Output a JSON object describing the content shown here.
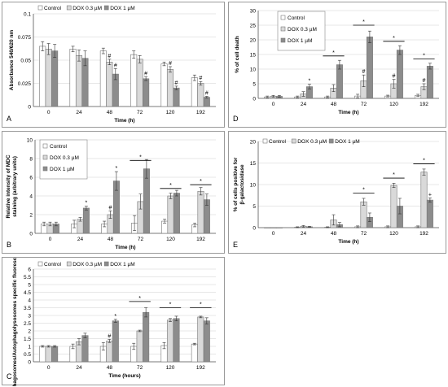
{
  "panels": [
    {
      "letter": "A",
      "chart_data": {
        "type": "bar",
        "ylabel": "Absorbance 540/620 nm",
        "xlabel": "Time (h)",
        "categories": [
          "0",
          "24",
          "48",
          "72",
          "120",
          "192"
        ],
        "ylim": [
          0,
          0.1
        ],
        "yticks": [
          "0",
          "0.025",
          "0.05",
          "0.075",
          "0.1"
        ],
        "legend_position": "top",
        "legend_layout": "row",
        "grid": true,
        "series": [
          {
            "name": "Control",
            "color": "#ffffff",
            "values": [
              0.065,
              0.062,
              0.06,
              0.056,
              0.046,
              0.031
            ],
            "errors": [
              0.005,
              0.003,
              0.003,
              0.004,
              0.002,
              0.003
            ]
          },
          {
            "name": "DOX 0.3 µM",
            "color": "#d9d9d9",
            "values": [
              0.062,
              0.055,
              0.048,
              0.051,
              0.04,
              0.025
            ],
            "errors": [
              0.006,
              0.006,
              0.003,
              0.004,
              0.003,
              0.002
            ]
          },
          {
            "name": "DOX 1 µM",
            "color": "#8c8c8c",
            "values": [
              0.06,
              0.052,
              0.035,
              0.03,
              0.02,
              0.01
            ],
            "errors": [
              0.007,
              0.008,
              0.006,
              0.002,
              0.002,
              0.001
            ]
          }
        ],
        "annotations": [
          {
            "text": "#",
            "cat": 2,
            "series": 1
          },
          {
            "text": "#",
            "cat": 2,
            "series": 2
          },
          {
            "text": "#",
            "cat": 3,
            "series": 2
          },
          {
            "text": "#",
            "cat": 4,
            "series": 1
          },
          {
            "text": "#",
            "cat": 4,
            "series": 2
          },
          {
            "text": "#",
            "cat": 5,
            "series": 1
          },
          {
            "text": "#",
            "cat": 5,
            "series": 2
          }
        ],
        "brackets": []
      }
    },
    {
      "letter": "B",
      "chart_data": {
        "type": "bar",
        "ylabel": "Relative intensity of MDC staining (arbitrary units)",
        "xlabel": "Time (h)",
        "categories": [
          "0",
          "24",
          "48",
          "72",
          "120",
          "192"
        ],
        "ylim": [
          0,
          10
        ],
        "yticks": [
          "0",
          "2",
          "4",
          "6",
          "8",
          "10"
        ],
        "legend_position": "top-left",
        "legend_layout": "column",
        "grid": true,
        "series": [
          {
            "name": "Control",
            "color": "#ffffff",
            "values": [
              1.0,
              1.0,
              1.0,
              1.1,
              1.3,
              0.9
            ],
            "errors": [
              0.2,
              0.4,
              0.3,
              0.8,
              0.2,
              0.2
            ]
          },
          {
            "name": "DOX 0.3 µM",
            "color": "#d9d9d9",
            "values": [
              1.0,
              1.5,
              2.0,
              3.4,
              4.0,
              4.5
            ],
            "errors": [
              0.2,
              0.2,
              0.4,
              0.8,
              0.3,
              0.4
            ]
          },
          {
            "name": "DOX 1 µM",
            "color": "#8c8c8c",
            "values": [
              1.0,
              2.7,
              5.6,
              6.9,
              4.3,
              3.6
            ],
            "errors": [
              0.2,
              0.2,
              1.0,
              1.0,
              0.3,
              0.6
            ]
          }
        ],
        "annotations": [
          {
            "text": "*",
            "cat": 1,
            "series": 2
          },
          {
            "text": "#",
            "cat": 2,
            "series": 1
          },
          {
            "text": "*",
            "cat": 2,
            "series": 2
          }
        ],
        "brackets": [
          {
            "cat": 3,
            "value": 7.8,
            "text": "*"
          },
          {
            "cat": 4,
            "value": 4.8,
            "text": "*"
          },
          {
            "cat": 5,
            "value": 5.2,
            "text": "*"
          }
        ]
      }
    },
    {
      "letter": "C",
      "chart_data": {
        "type": "bar",
        "ylabel": "Autophagosomes/Autophagolysosomes specific fluorescence (ratio)",
        "xlabel": "Time (hours)",
        "categories": [
          "0",
          "24",
          "48",
          "72",
          "120",
          "192"
        ],
        "ylim": [
          0,
          6
        ],
        "yticks": [
          "0",
          "0.5",
          "1",
          "1.5",
          "2",
          "2.5",
          "3",
          "3.5",
          "4",
          "4.5",
          "5",
          "5.5",
          "6"
        ],
        "legend_position": "top",
        "legend_layout": "row",
        "grid": true,
        "series": [
          {
            "name": "Control",
            "color": "#ffffff",
            "values": [
              1.0,
              1.0,
              1.0,
              1.0,
              1.05,
              1.15
            ],
            "errors": [
              0.05,
              0.15,
              0.25,
              0.2,
              0.2,
              0.05
            ]
          },
          {
            "name": "DOX 0.3 µM",
            "color": "#d9d9d9",
            "values": [
              1.0,
              1.3,
              1.35,
              2.0,
              2.7,
              2.9
            ],
            "errors": [
              0.05,
              0.2,
              0.1,
              0.05,
              0.1,
              0.05
            ]
          },
          {
            "name": "DOX 1 µM",
            "color": "#8c8c8c",
            "values": [
              1.0,
              1.7,
              2.65,
              3.2,
              2.8,
              2.65
            ],
            "errors": [
              0.05,
              0.15,
              0.1,
              0.3,
              0.15,
              0.2
            ]
          }
        ],
        "annotations": [
          {
            "text": "#",
            "cat": 2,
            "series": 1
          },
          {
            "text": "*",
            "cat": 2,
            "series": 2
          }
        ],
        "brackets": [
          {
            "cat": 3,
            "value": 3.9,
            "text": "*"
          },
          {
            "cat": 4,
            "value": 3.5,
            "text": "*"
          },
          {
            "cat": 5,
            "value": 3.5,
            "text": "*"
          }
        ]
      }
    },
    {
      "letter": "D",
      "chart_data": {
        "type": "bar",
        "ylabel": "% of cell death",
        "xlabel": "Time (h)",
        "categories": [
          "0",
          "24",
          "48",
          "72",
          "120",
          "192"
        ],
        "ylim": [
          0,
          30
        ],
        "yticks": [
          "0",
          "5",
          "10",
          "15",
          "20",
          "25",
          "30"
        ],
        "legend_position": "top-left",
        "legend_layout": "column",
        "grid": true,
        "series": [
          {
            "name": "Control",
            "color": "#ffffff",
            "values": [
              0.5,
              0.5,
              0.5,
              0.8,
              0.8,
              1.0
            ],
            "errors": [
              0.3,
              0.3,
              0.3,
              0.6,
              0.3,
              0.4
            ]
          },
          {
            "name": "DOX 0.3 µM",
            "color": "#d9d9d9",
            "values": [
              0.7,
              1.5,
              3.5,
              6.0,
              5.0,
              4.0
            ],
            "errors": [
              0.3,
              0.8,
              1.2,
              2.0,
              1.5,
              1.0
            ]
          },
          {
            "name": "DOX 1 µM",
            "color": "#8c8c8c",
            "values": [
              0.7,
              4.0,
              11.5,
              21.0,
              16.5,
              11.0
            ],
            "errors": [
              0.3,
              0.8,
              1.5,
              2.0,
              1.5,
              1.0
            ]
          }
        ],
        "annotations": [
          {
            "text": "*",
            "cat": 1,
            "series": 2
          },
          {
            "text": "#",
            "cat": 3,
            "series": 1
          },
          {
            "text": "#",
            "cat": 4,
            "series": 1
          },
          {
            "text": "#",
            "cat": 5,
            "series": 1
          }
        ],
        "brackets": [
          {
            "cat": 2,
            "value": 14.5,
            "text": "*"
          },
          {
            "cat": 3,
            "value": 25.0,
            "text": "*"
          },
          {
            "cat": 4,
            "value": 19.5,
            "text": "*"
          },
          {
            "cat": 5,
            "value": 13.5,
            "text": "*"
          }
        ]
      }
    },
    {
      "letter": "E",
      "chart_data": {
        "type": "bar",
        "ylabel": "% of cells positive for β-galactosidase",
        "xlabel": "Time (h)",
        "categories": [
          "0",
          "24",
          "48",
          "72",
          "120",
          "192"
        ],
        "ylim": [
          0,
          20
        ],
        "yticks": [
          "0",
          "5",
          "10",
          "15",
          "20"
        ],
        "legend_position": "top",
        "legend_layout": "row",
        "grid": true,
        "series": [
          {
            "name": "Control",
            "color": "#ffffff",
            "values": [
              0,
              0.1,
              0.1,
              0.2,
              0.2,
              0.2
            ],
            "errors": [
              0,
              0.1,
              0.1,
              0.2,
              0.2,
              0.2
            ]
          },
          {
            "name": "DOX 0.3 µM",
            "color": "#d9d9d9",
            "values": [
              0,
              0.3,
              1.8,
              6.0,
              9.8,
              12.9
            ],
            "errors": [
              0,
              0.2,
              1.2,
              0.8,
              0.5,
              0.7
            ]
          },
          {
            "name": "DOX 1 µM",
            "color": "#8c8c8c",
            "values": [
              0,
              0.2,
              0.7,
              2.4,
              5.0,
              6.4
            ],
            "errors": [
              0,
              0.1,
              0.5,
              1.0,
              1.8,
              0.5
            ]
          }
        ],
        "annotations": [
          {
            "text": "+",
            "cat": 5,
            "series": 2
          }
        ],
        "brackets": [
          {
            "cat": 3,
            "value": 8.0,
            "text": "*"
          },
          {
            "cat": 4,
            "value": 11.5,
            "text": "*"
          },
          {
            "cat": 5,
            "value": 14.8,
            "text": "*"
          }
        ]
      }
    }
  ]
}
